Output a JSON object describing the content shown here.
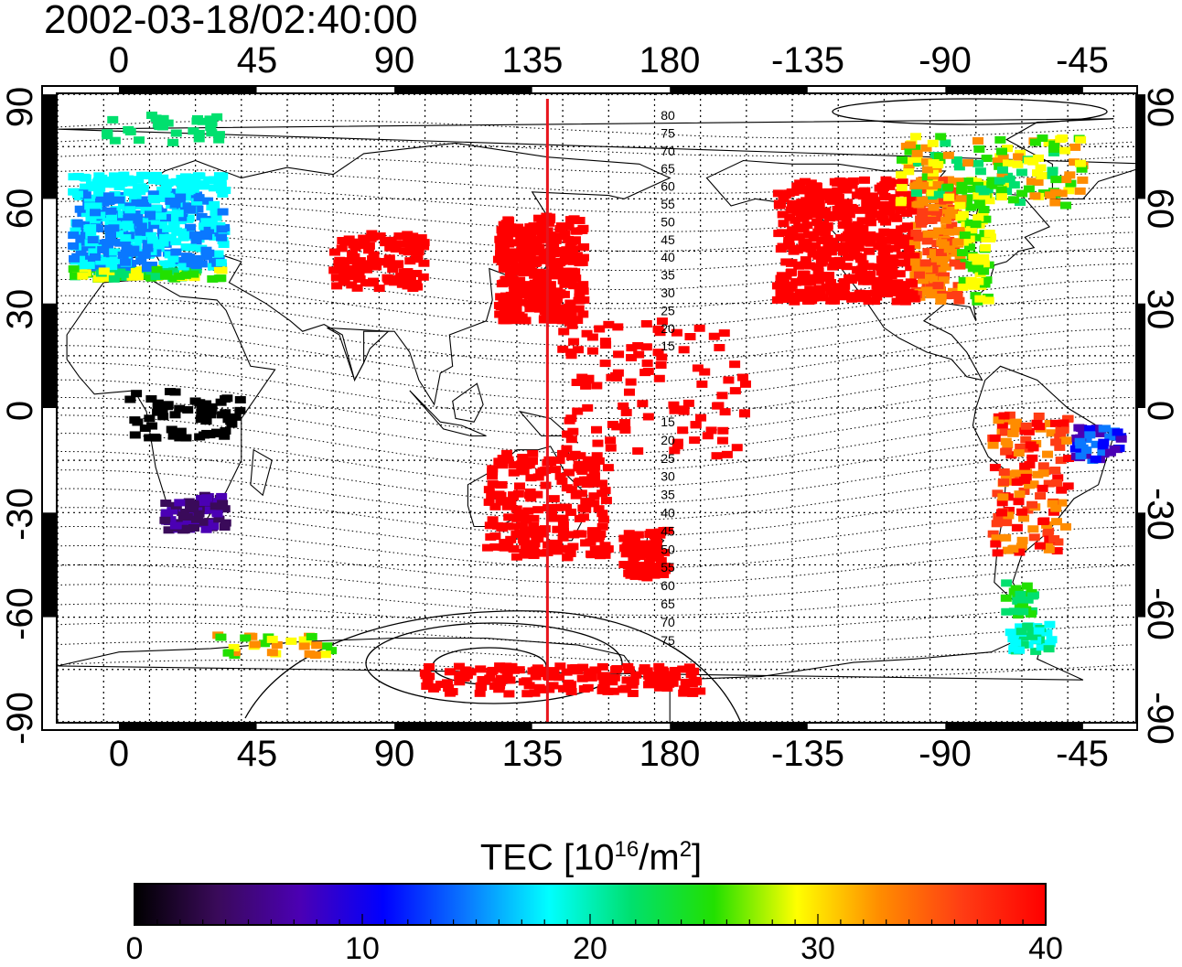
{
  "title": "2002-03-18/02:40:00",
  "map": {
    "lon_tick_labels": [
      "0",
      "45",
      "90",
      "135",
      "180",
      "-135",
      "-90",
      "-45"
    ],
    "lat_tick_labels_left": [
      "90",
      "60",
      "30",
      "0",
      "-30",
      "-60",
      "-90"
    ],
    "lat_tick_labels_right": [
      "90",
      "60",
      "30",
      "0",
      "-30",
      "-60",
      "-90"
    ],
    "contour_labels_north": [
      "80",
      "75",
      "70",
      "65",
      "60",
      "55",
      "50",
      "45",
      "40",
      "35",
      "30",
      "25",
      "20",
      "15"
    ],
    "contour_labels_south": [
      "15",
      "20",
      "25",
      "30",
      "35",
      "40",
      "45",
      "50",
      "55",
      "60",
      "65",
      "70",
      "75"
    ],
    "meridian_marker_lon": 140,
    "marker_color": "#e8141c"
  },
  "colorbar": {
    "title_prefix": "TEC  [10",
    "title_sup1": "16",
    "title_mid": "/m",
    "title_sup2": "2",
    "title_suffix": "]",
    "tick_labels": [
      "0",
      "10",
      "20",
      "30",
      "40"
    ],
    "min": 0,
    "max": 40,
    "colors": [
      "#000000",
      "#3a0a5a",
      "#4b00b4",
      "#0000ff",
      "#0a78ff",
      "#00ffff",
      "#00e06e",
      "#22e000",
      "#ffff00",
      "#ff8c00",
      "#ff3c14",
      "#ff0000"
    ]
  }
}
